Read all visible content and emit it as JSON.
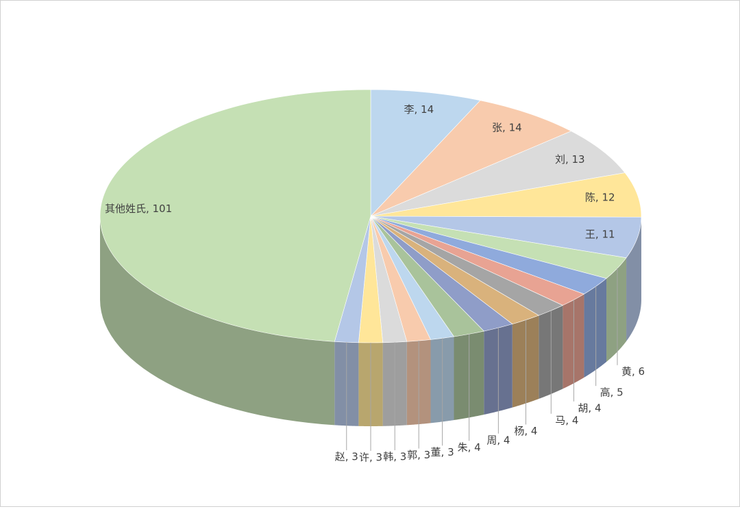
{
  "chart_data": {
    "type": "pie3d",
    "values": [
      14,
      14,
      13,
      12,
      11,
      6,
      5,
      4,
      4,
      4,
      4,
      4,
      3,
      3,
      3,
      3,
      3,
      101
    ],
    "value_labels": [
      "李, 14",
      "张, 14",
      "刘, 13",
      "陈, 12",
      "王, 11",
      "黄, 6",
      "高, 5",
      "胡, 4",
      "马, 4",
      "杨, 4",
      "周, 4",
      "朱, 4",
      "董, 3",
      "郭, 3",
      "韩, 3",
      "许, 3",
      "赵, 3",
      "其他姓氏, 101"
    ],
    "colors": [
      "#bdd7ee",
      "#f8cbad",
      "#dbdbdb",
      "#ffe699",
      "#b4c7e7",
      "#c5e0b4",
      "#8faadc",
      "#e8a393",
      "#a5a5a5",
      "#d9b27c",
      "#8f9dc8",
      "#a9c39b",
      "#bdd7ee",
      "#f8cbad",
      "#dbdbdb",
      "#ffe699",
      "#b4c7e7",
      "#c5e0b4"
    ]
  }
}
